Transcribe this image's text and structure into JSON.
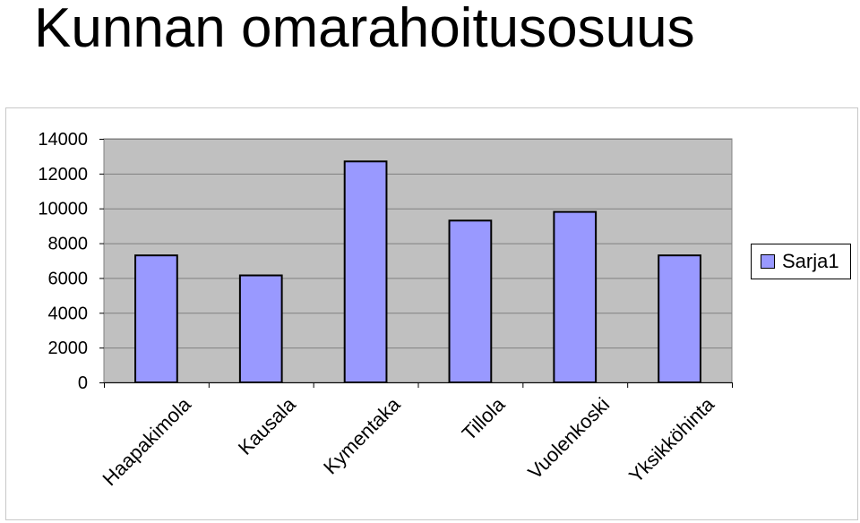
{
  "title": "Kunnan omarahoitusosuus",
  "chart_data": {
    "type": "bar",
    "categories": [
      "Haapakimola",
      "Kausala",
      "Kymentaka",
      "Tillola",
      "Vuolenkoski",
      "Yksikköhinta"
    ],
    "series": [
      {
        "name": "Sarja1",
        "values": [
          7300,
          6150,
          12700,
          9300,
          9800,
          7300
        ]
      }
    ],
    "ylim": [
      0,
      14000
    ],
    "yticks": [
      0,
      2000,
      4000,
      6000,
      8000,
      10000,
      12000,
      14000
    ],
    "grid": true,
    "legend": "right",
    "colors": {
      "bar": "#9999ff",
      "plot_bg": "#c0c0c0",
      "grid": "#808080"
    }
  }
}
